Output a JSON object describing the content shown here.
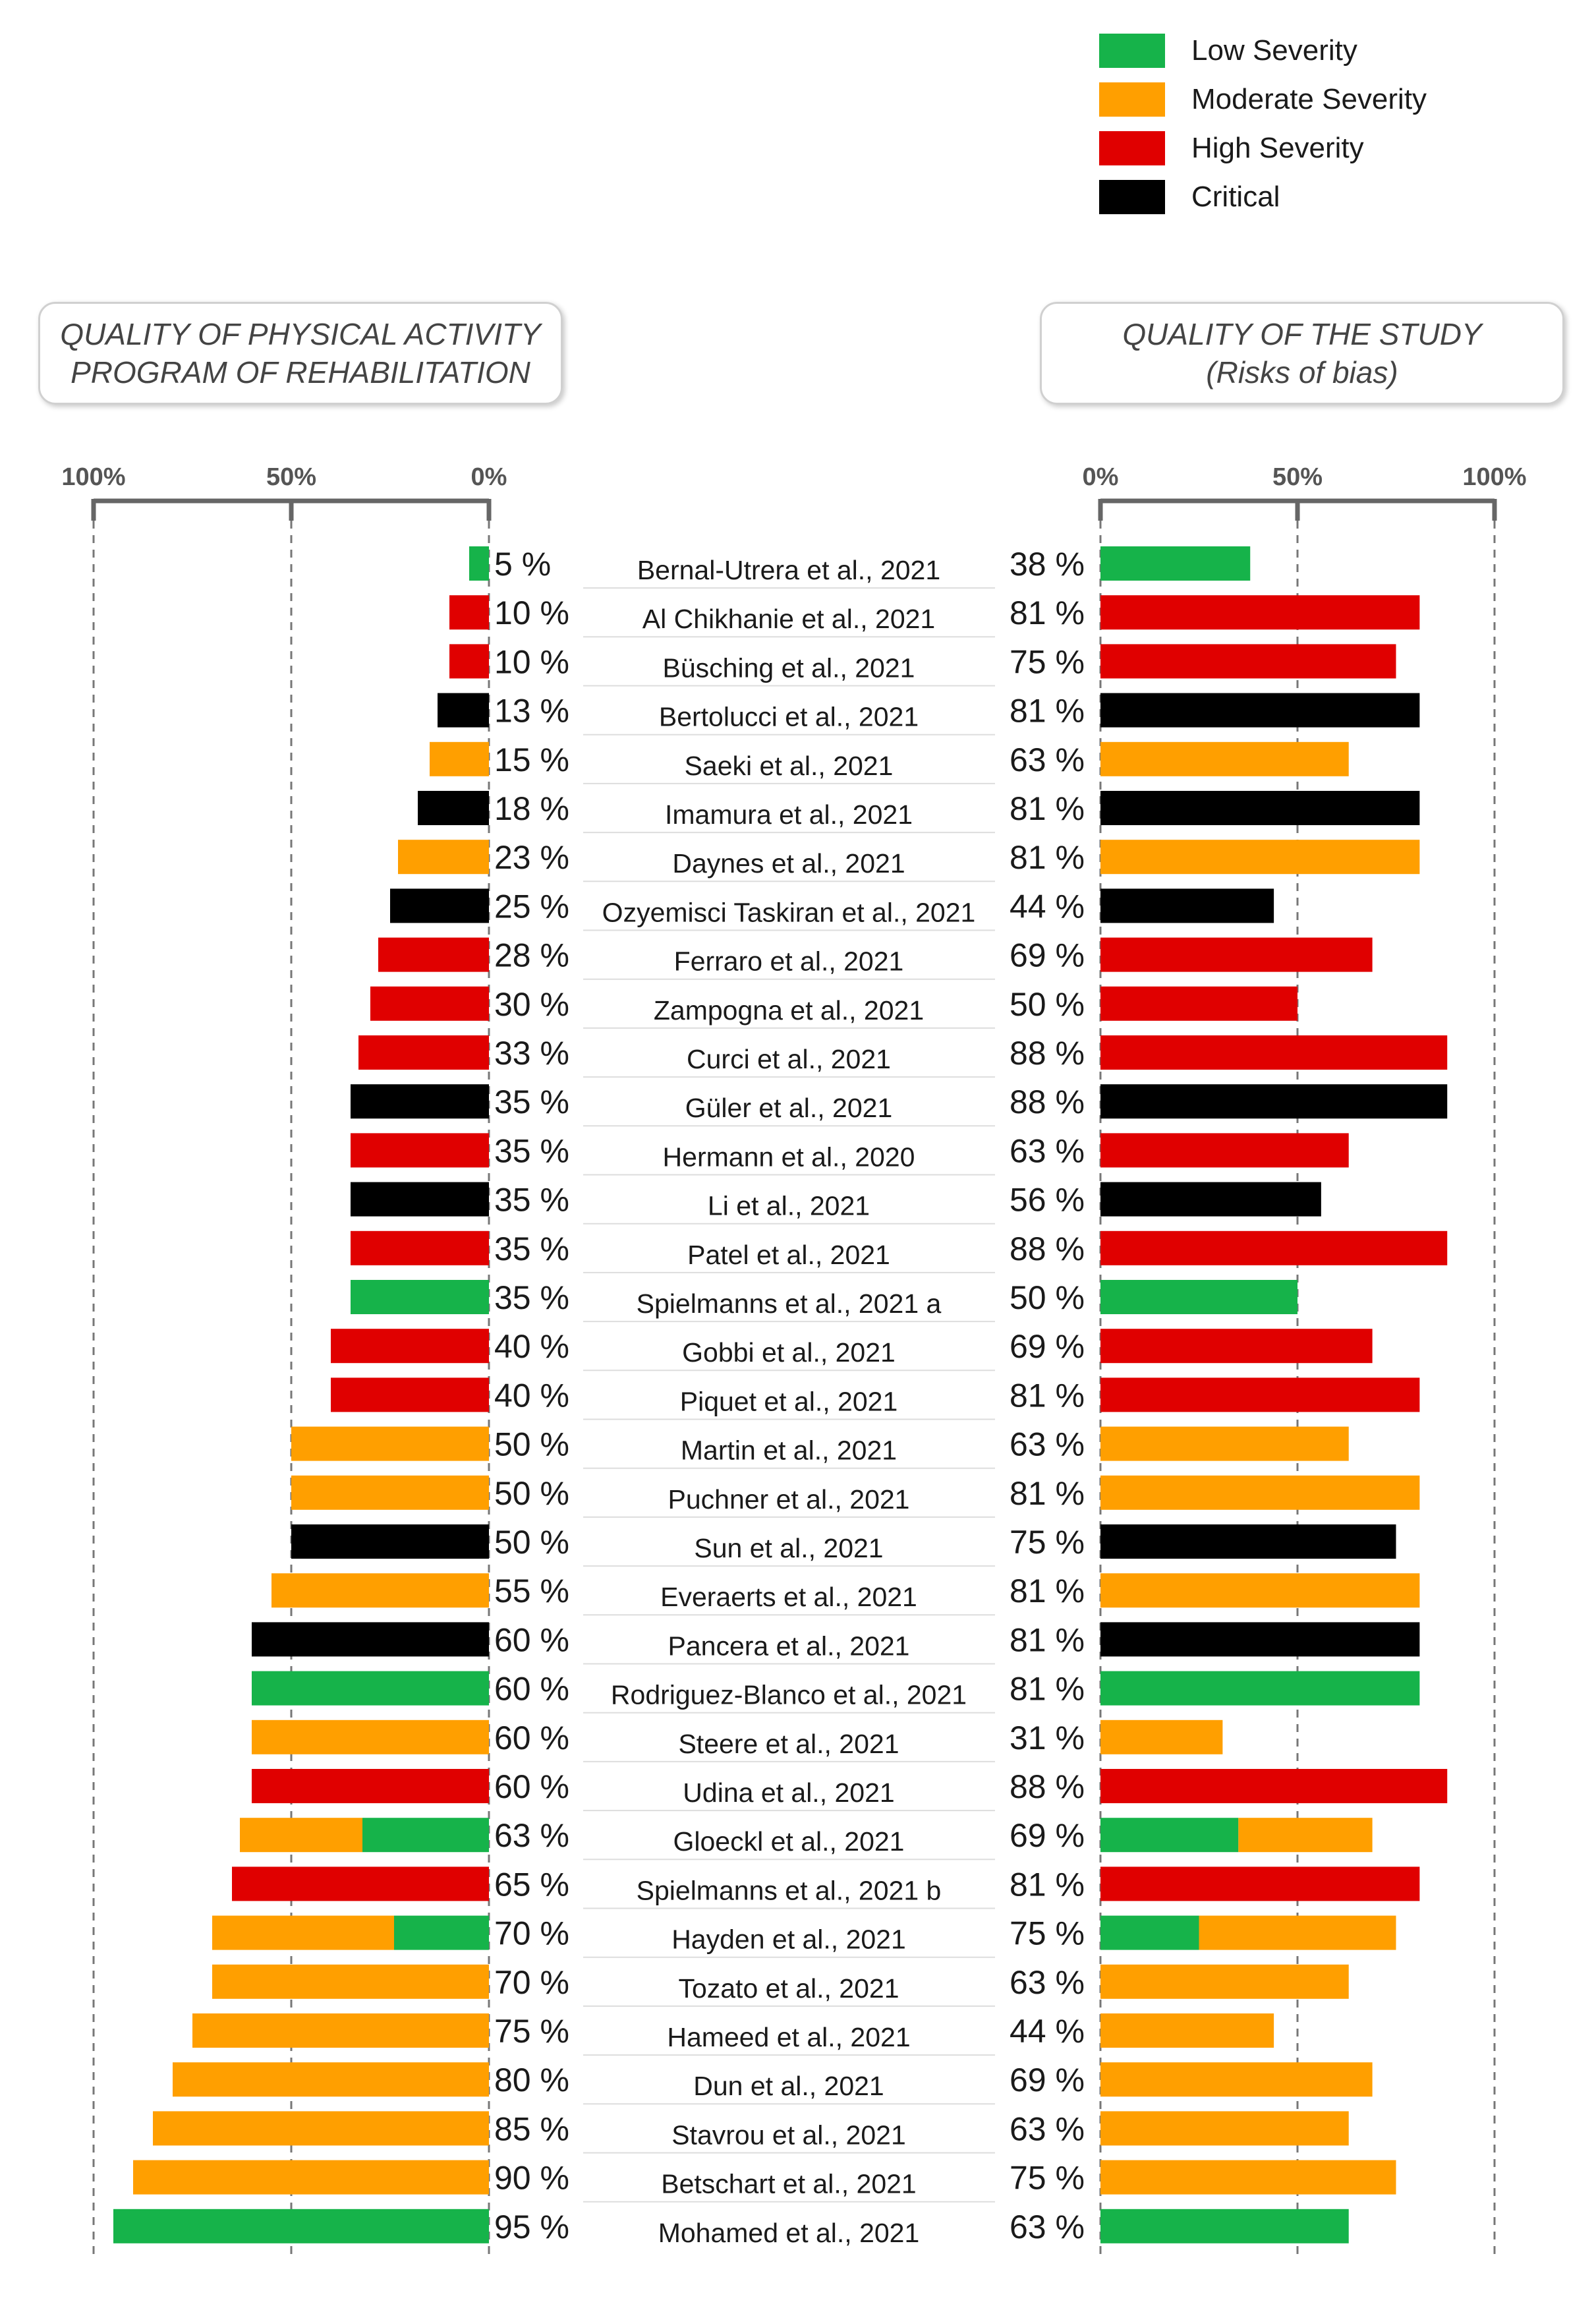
{
  "legend": {
    "items": [
      {
        "label": "Low Severity",
        "color": "#16b34a"
      },
      {
        "label": "Moderate Severity",
        "color": "#ff9f00"
      },
      {
        "label": "High Severity",
        "color": "#e00000"
      },
      {
        "label": "Critical",
        "color": "#000000"
      }
    ]
  },
  "panels": {
    "left_title_line1": "QUALITY OF PHYSICAL ACTIVITY",
    "left_title_line2": "PROGRAM OF REHABILITATION",
    "right_title_line1": "QUALITY OF THE STUDY",
    "right_title_line2": "(Risks of bias)"
  },
  "chart_data": {
    "type": "bar",
    "title_left": "QUALITY OF PHYSICAL ACTIVITY PROGRAM OF REHABILITATION",
    "title_right": "QUALITY OF THE STUDY (Risks of bias)",
    "left_axis_ticks": [
      "100%",
      "50%",
      "0%"
    ],
    "right_axis_ticks": [
      "0%",
      "50%",
      "100%"
    ],
    "colors": {
      "low": "#16b34a",
      "moderate": "#ff9f00",
      "high": "#e00000",
      "critical": "#000000"
    },
    "rows": [
      {
        "study": "Bernal-Utrera et al., 2021",
        "pa": 5,
        "pa_label": "5 %",
        "pa_segments": [
          {
            "c": "low",
            "v": 5
          }
        ],
        "rob": 38,
        "rob_label": "38 %",
        "rob_segments": [
          {
            "c": "low",
            "v": 38
          }
        ]
      },
      {
        "study": "Al Chikhanie et al., 2021",
        "pa": 10,
        "pa_label": "10 %",
        "pa_segments": [
          {
            "c": "high",
            "v": 10
          }
        ],
        "rob": 81,
        "rob_label": "81 %",
        "rob_segments": [
          {
            "c": "high",
            "v": 81
          }
        ]
      },
      {
        "study": "Büsching et al., 2021",
        "pa": 10,
        "pa_label": "10 %",
        "pa_segments": [
          {
            "c": "high",
            "v": 10
          }
        ],
        "rob": 75,
        "rob_label": "75 %",
        "rob_segments": [
          {
            "c": "high",
            "v": 75
          }
        ]
      },
      {
        "study": "Bertolucci et al., 2021",
        "pa": 13,
        "pa_label": "13 %",
        "pa_segments": [
          {
            "c": "critical",
            "v": 13
          }
        ],
        "rob": 81,
        "rob_label": "81 %",
        "rob_segments": [
          {
            "c": "critical",
            "v": 81
          }
        ]
      },
      {
        "study": "Saeki et al., 2021",
        "pa": 15,
        "pa_label": "15 %",
        "pa_segments": [
          {
            "c": "moderate",
            "v": 15
          }
        ],
        "rob": 63,
        "rob_label": "63 %",
        "rob_segments": [
          {
            "c": "moderate",
            "v": 63
          }
        ]
      },
      {
        "study": "Imamura et al., 2021",
        "pa": 18,
        "pa_label": "18 %",
        "pa_segments": [
          {
            "c": "critical",
            "v": 18
          }
        ],
        "rob": 81,
        "rob_label": "81 %",
        "rob_segments": [
          {
            "c": "critical",
            "v": 81
          }
        ]
      },
      {
        "study": "Daynes et al., 2021",
        "pa": 23,
        "pa_label": "23 %",
        "pa_segments": [
          {
            "c": "moderate",
            "v": 23
          }
        ],
        "rob": 81,
        "rob_label": "81 %",
        "rob_segments": [
          {
            "c": "moderate",
            "v": 81
          }
        ]
      },
      {
        "study": "Ozyemisci Taskiran et al., 2021",
        "pa": 25,
        "pa_label": "25 %",
        "pa_segments": [
          {
            "c": "critical",
            "v": 25
          }
        ],
        "rob": 44,
        "rob_label": "44 %",
        "rob_segments": [
          {
            "c": "critical",
            "v": 44
          }
        ]
      },
      {
        "study": "Ferraro et al., 2021",
        "pa": 28,
        "pa_label": "28 %",
        "pa_segments": [
          {
            "c": "high",
            "v": 28
          }
        ],
        "rob": 69,
        "rob_label": "69 %",
        "rob_segments": [
          {
            "c": "high",
            "v": 69
          }
        ]
      },
      {
        "study": "Zampogna et al., 2021",
        "pa": 30,
        "pa_label": "30 %",
        "pa_segments": [
          {
            "c": "high",
            "v": 30
          }
        ],
        "rob": 50,
        "rob_label": "50 %",
        "rob_segments": [
          {
            "c": "high",
            "v": 50
          }
        ]
      },
      {
        "study": "Curci et al., 2021",
        "pa": 33,
        "pa_label": "33 %",
        "pa_segments": [
          {
            "c": "high",
            "v": 33
          }
        ],
        "rob": 88,
        "rob_label": "88 %",
        "rob_segments": [
          {
            "c": "high",
            "v": 88
          }
        ]
      },
      {
        "study": "Güler et al., 2021",
        "pa": 35,
        "pa_label": "35 %",
        "pa_segments": [
          {
            "c": "critical",
            "v": 35
          }
        ],
        "rob": 88,
        "rob_label": "88 %",
        "rob_segments": [
          {
            "c": "critical",
            "v": 88
          }
        ]
      },
      {
        "study": "Hermann et al., 2020",
        "pa": 35,
        "pa_label": "35 %",
        "pa_segments": [
          {
            "c": "high",
            "v": 35
          }
        ],
        "rob": 63,
        "rob_label": "63 %",
        "rob_segments": [
          {
            "c": "high",
            "v": 63
          }
        ]
      },
      {
        "study": "Li et al., 2021",
        "pa": 35,
        "pa_label": "35 %",
        "pa_segments": [
          {
            "c": "critical",
            "v": 35
          }
        ],
        "rob": 56,
        "rob_label": "56 %",
        "rob_segments": [
          {
            "c": "critical",
            "v": 56
          }
        ]
      },
      {
        "study": "Patel et al., 2021",
        "pa": 35,
        "pa_label": "35 %",
        "pa_segments": [
          {
            "c": "high",
            "v": 35
          }
        ],
        "rob": 88,
        "rob_label": "88 %",
        "rob_segments": [
          {
            "c": "high",
            "v": 88
          }
        ]
      },
      {
        "study": "Spielmanns et al., 2021 a",
        "pa": 35,
        "pa_label": "35 %",
        "pa_segments": [
          {
            "c": "low",
            "v": 35
          }
        ],
        "rob": 50,
        "rob_label": "50 %",
        "rob_segments": [
          {
            "c": "low",
            "v": 50
          }
        ]
      },
      {
        "study": "Gobbi et al., 2021",
        "pa": 40,
        "pa_label": "40 %",
        "pa_segments": [
          {
            "c": "high",
            "v": 40
          }
        ],
        "rob": 69,
        "rob_label": "69 %",
        "rob_segments": [
          {
            "c": "high",
            "v": 69
          }
        ]
      },
      {
        "study": "Piquet et al., 2021",
        "pa": 40,
        "pa_label": "40 %",
        "pa_segments": [
          {
            "c": "high",
            "v": 40
          }
        ],
        "rob": 81,
        "rob_label": "81 %",
        "rob_segments": [
          {
            "c": "high",
            "v": 81
          }
        ]
      },
      {
        "study": "Martin et al., 2021",
        "pa": 50,
        "pa_label": "50 %",
        "pa_segments": [
          {
            "c": "moderate",
            "v": 50
          }
        ],
        "rob": 63,
        "rob_label": "63 %",
        "rob_segments": [
          {
            "c": "moderate",
            "v": 63
          }
        ]
      },
      {
        "study": "Puchner et al., 2021",
        "pa": 50,
        "pa_label": "50 %",
        "pa_segments": [
          {
            "c": "moderate",
            "v": 50
          }
        ],
        "rob": 81,
        "rob_label": "81 %",
        "rob_segments": [
          {
            "c": "moderate",
            "v": 81
          }
        ]
      },
      {
        "study": "Sun et al., 2021",
        "pa": 50,
        "pa_label": "50 %",
        "pa_segments": [
          {
            "c": "critical",
            "v": 50
          }
        ],
        "rob": 75,
        "rob_label": "75 %",
        "rob_segments": [
          {
            "c": "critical",
            "v": 75
          }
        ]
      },
      {
        "study": "Everaerts et al., 2021",
        "pa": 55,
        "pa_label": "55 %",
        "pa_segments": [
          {
            "c": "moderate",
            "v": 55
          }
        ],
        "rob": 81,
        "rob_label": "81 %",
        "rob_segments": [
          {
            "c": "moderate",
            "v": 81
          }
        ]
      },
      {
        "study": "Pancera et al., 2021",
        "pa": 60,
        "pa_label": "60 %",
        "pa_segments": [
          {
            "c": "critical",
            "v": 60
          }
        ],
        "rob": 81,
        "rob_label": "81 %",
        "rob_segments": [
          {
            "c": "critical",
            "v": 81
          }
        ]
      },
      {
        "study": "Rodriguez-Blanco et al., 2021",
        "pa": 60,
        "pa_label": "60 %",
        "pa_segments": [
          {
            "c": "low",
            "v": 60
          }
        ],
        "rob": 81,
        "rob_label": "81 %",
        "rob_segments": [
          {
            "c": "low",
            "v": 81
          }
        ]
      },
      {
        "study": "Steere et al., 2021",
        "pa": 60,
        "pa_label": "60 %",
        "pa_segments": [
          {
            "c": "moderate",
            "v": 60
          }
        ],
        "rob": 31,
        "rob_label": "31 %",
        "rob_segments": [
          {
            "c": "moderate",
            "v": 31
          }
        ]
      },
      {
        "study": "Udina et al., 2021",
        "pa": 60,
        "pa_label": "60 %",
        "pa_segments": [
          {
            "c": "high",
            "v": 60
          }
        ],
        "rob": 88,
        "rob_label": "88 %",
        "rob_segments": [
          {
            "c": "high",
            "v": 88
          }
        ]
      },
      {
        "study": "Gloeckl et al., 2021",
        "pa": 63,
        "pa_label": "63 %",
        "pa_segments": [
          {
            "c": "low",
            "v": 32
          },
          {
            "c": "moderate",
            "v": 31
          }
        ],
        "rob": 69,
        "rob_label": "69 %",
        "rob_segments": [
          {
            "c": "low",
            "v": 35
          },
          {
            "c": "moderate",
            "v": 34
          }
        ]
      },
      {
        "study": "Spielmanns et al., 2021 b",
        "pa": 65,
        "pa_label": "65 %",
        "pa_segments": [
          {
            "c": "high",
            "v": 65
          }
        ],
        "rob": 81,
        "rob_label": "81 %",
        "rob_segments": [
          {
            "c": "high",
            "v": 81
          }
        ]
      },
      {
        "study": "Hayden et al., 2021",
        "pa": 70,
        "pa_label": "70 %",
        "pa_segments": [
          {
            "c": "low",
            "v": 24
          },
          {
            "c": "moderate",
            "v": 46
          }
        ],
        "rob": 75,
        "rob_label": "75 %",
        "rob_segments": [
          {
            "c": "low",
            "v": 25
          },
          {
            "c": "moderate",
            "v": 50
          }
        ]
      },
      {
        "study": "Tozato et al., 2021",
        "pa": 70,
        "pa_label": "70 %",
        "pa_segments": [
          {
            "c": "moderate",
            "v": 70
          }
        ],
        "rob": 63,
        "rob_label": "63 %",
        "rob_segments": [
          {
            "c": "moderate",
            "v": 63
          }
        ]
      },
      {
        "study": "Hameed et al., 2021",
        "pa": 75,
        "pa_label": "75 %",
        "pa_segments": [
          {
            "c": "moderate",
            "v": 75
          }
        ],
        "rob": 44,
        "rob_label": "44 %",
        "rob_segments": [
          {
            "c": "moderate",
            "v": 44
          }
        ]
      },
      {
        "study": "Dun et al., 2021",
        "pa": 80,
        "pa_label": "80 %",
        "pa_segments": [
          {
            "c": "moderate",
            "v": 80
          }
        ],
        "rob": 69,
        "rob_label": "69 %",
        "rob_segments": [
          {
            "c": "moderate",
            "v": 69
          }
        ]
      },
      {
        "study": "Stavrou et al., 2021",
        "pa": 85,
        "pa_label": "85 %",
        "pa_segments": [
          {
            "c": "moderate",
            "v": 85
          }
        ],
        "rob": 63,
        "rob_label": "63 %",
        "rob_segments": [
          {
            "c": "moderate",
            "v": 63
          }
        ]
      },
      {
        "study": "Betschart et al., 2021",
        "pa": 90,
        "pa_label": "90 %",
        "pa_segments": [
          {
            "c": "moderate",
            "v": 90
          }
        ],
        "rob": 75,
        "rob_label": "75 %",
        "rob_segments": [
          {
            "c": "moderate",
            "v": 75
          }
        ]
      },
      {
        "study": "Mohamed et al., 2021",
        "pa": 95,
        "pa_label": "95 %",
        "pa_segments": [
          {
            "c": "low",
            "v": 95
          }
        ],
        "rob": 63,
        "rob_label": "63 %",
        "rob_segments": [
          {
            "c": "low",
            "v": 63
          }
        ]
      }
    ]
  }
}
